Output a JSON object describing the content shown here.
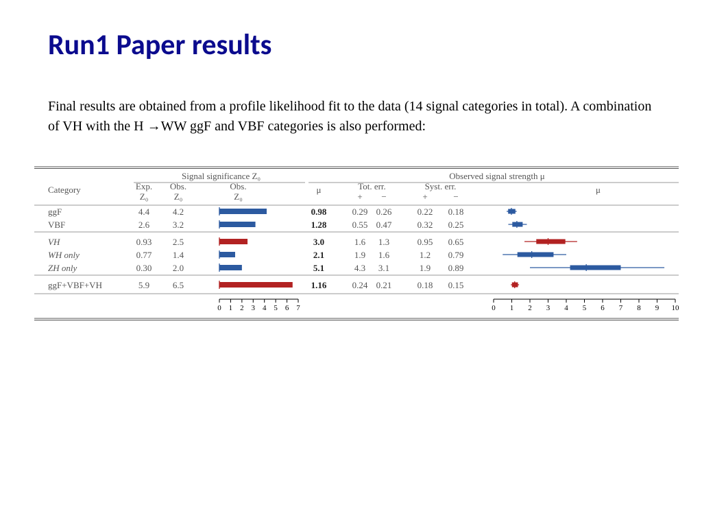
{
  "title": "Run1 Paper results",
  "intro": "Final results are obtained from  a profile likelihood fit to the data (14 signal categories in total).  A combination  of  VH with the H →WW ggF and VBF categories is also performed:",
  "table": {
    "headers": {
      "category": "Category",
      "sig_group": "Signal significance Z₀",
      "mu_group": "Observed signal strength μ",
      "exp_z0": "Exp.\nZ₀",
      "obs_z0_a": "Obs.\nZ₀",
      "obs_z0_b": "Obs.\nZ₀",
      "mu": "μ",
      "tot_err": "Tot. err.",
      "syst_err": "Syst. err.",
      "plus": "+",
      "minus": "−",
      "mu_plot": "μ"
    },
    "rows": [
      {
        "label": "ggF",
        "italic": false,
        "exp": "4.4",
        "obs": "4.2",
        "z0_bar": 4.2,
        "z0_color": "blue",
        "mu": "0.98",
        "tot_p": "0.29",
        "tot_m": "0.26",
        "sys_p": "0.22",
        "sys_m": "0.18",
        "mu_val": 0.98,
        "mu_tot_p": 0.29,
        "mu_tot_m": 0.26,
        "mu_sys_p": 0.22,
        "mu_sys_m": 0.18,
        "mu_color": "blue"
      },
      {
        "label": "VBF",
        "italic": false,
        "exp": "2.6",
        "obs": "3.2",
        "z0_bar": 3.2,
        "z0_color": "blue",
        "mu": "1.28",
        "tot_p": "0.55",
        "tot_m": "0.47",
        "sys_p": "0.32",
        "sys_m": "0.25",
        "mu_val": 1.28,
        "mu_tot_p": 0.55,
        "mu_tot_m": 0.47,
        "mu_sys_p": 0.32,
        "mu_sys_m": 0.25,
        "mu_color": "blue"
      },
      {
        "label": "VH",
        "italic": true,
        "exp": "0.93",
        "obs": "2.5",
        "z0_bar": 2.5,
        "z0_color": "red",
        "mu": "3.0",
        "tot_p": "1.6",
        "tot_m": "1.3",
        "sys_p": "0.95",
        "sys_m": "0.65",
        "mu_val": 3.0,
        "mu_tot_p": 1.6,
        "mu_tot_m": 1.3,
        "mu_sys_p": 0.95,
        "mu_sys_m": 0.65,
        "mu_color": "red"
      },
      {
        "label": "WH  only",
        "italic": true,
        "exp": "0.77",
        "obs": "1.4",
        "z0_bar": 1.4,
        "z0_color": "blue",
        "mu": "2.1",
        "tot_p": "1.9",
        "tot_m": "1.6",
        "sys_p": "1.2",
        "sys_m": "0.79",
        "mu_val": 2.1,
        "mu_tot_p": 1.9,
        "mu_tot_m": 1.6,
        "mu_sys_p": 1.2,
        "mu_sys_m": 0.79,
        "mu_color": "blue"
      },
      {
        "label": "ZH   only",
        "italic": true,
        "exp": "0.30",
        "obs": "2.0",
        "z0_bar": 2.0,
        "z0_color": "blue",
        "mu": "5.1",
        "tot_p": "4.3",
        "tot_m": "3.1",
        "sys_p": "1.9",
        "sys_m": "0.89",
        "mu_val": 5.1,
        "mu_tot_p": 4.3,
        "mu_tot_m": 3.1,
        "mu_sys_p": 1.9,
        "mu_sys_m": 0.89,
        "mu_color": "blue"
      },
      {
        "label": "ggF+VBF+VH",
        "italic": false,
        "exp": "5.9",
        "obs": "6.5",
        "z0_bar": 6.5,
        "z0_color": "red",
        "mu": "1.16",
        "tot_p": "0.24",
        "tot_m": "0.21",
        "sys_p": "0.18",
        "sys_m": "0.15",
        "mu_val": 1.16,
        "mu_tot_p": 0.24,
        "mu_tot_m": 0.21,
        "mu_sys_p": 0.18,
        "mu_sys_m": 0.15,
        "mu_color": "red"
      }
    ],
    "z0_axis": {
      "min": 0,
      "max": 7,
      "ticks": [
        0,
        1,
        2,
        3,
        4,
        5,
        6,
        7
      ]
    },
    "mu_axis": {
      "min": 0,
      "max": 10,
      "ticks": [
        0,
        1,
        2,
        3,
        4,
        5,
        6,
        7,
        8,
        9,
        10
      ]
    },
    "colors": {
      "blue": "#2c5aa0",
      "red": "#b22222",
      "rule": "#555",
      "text": "#555"
    },
    "row_groups": [
      [
        0,
        1
      ],
      [
        2,
        3,
        4
      ],
      [
        5
      ]
    ]
  }
}
